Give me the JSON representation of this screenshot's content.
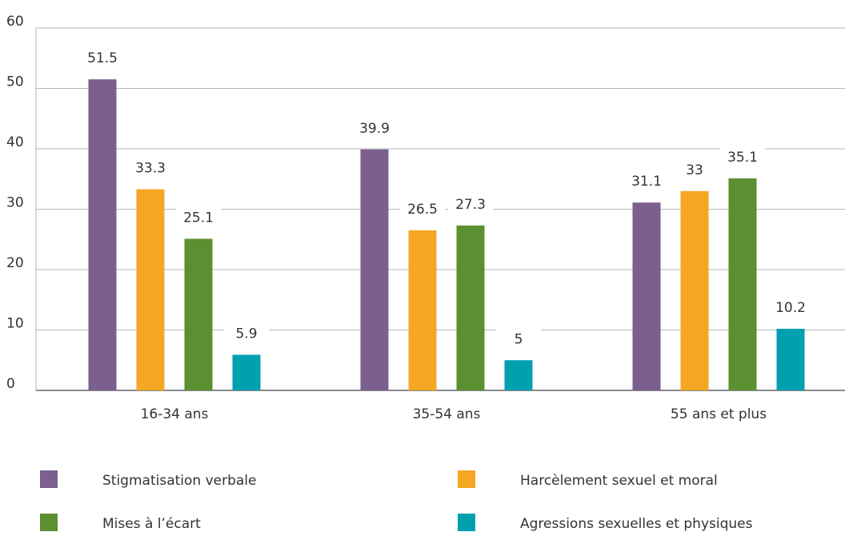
{
  "chart_data": {
    "type": "bar",
    "categories": [
      "16-34 ans",
      "35-54 ans",
      "55 ans et plus"
    ],
    "series": [
      {
        "name": "Stigmatisation verbale",
        "color": "#7b5f8e",
        "values": [
          51.5,
          39.9,
          31.1
        ]
      },
      {
        "name": "Harcèlement sexuel et moral",
        "color": "#f5a623",
        "values": [
          33.3,
          26.5,
          33
        ]
      },
      {
        "name": "Mises à l’écart",
        "color": "#5b8f32",
        "values": [
          25.1,
          27.3,
          35.1
        ]
      },
      {
        "name": "Agressions sexuelles et physiques",
        "color": "#00a0b0",
        "values": [
          5.9,
          5,
          10.2
        ]
      }
    ],
    "ylim": [
      0,
      60
    ],
    "yticks": [
      0,
      10,
      20,
      30,
      40,
      50,
      60
    ],
    "grid": true
  }
}
